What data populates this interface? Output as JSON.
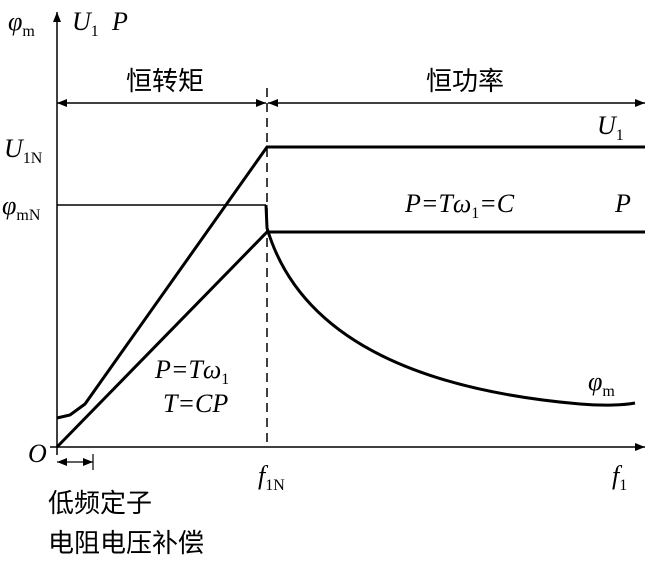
{
  "axes": {
    "y_labels": [
      {
        "main": "φ",
        "sub": "m"
      },
      {
        "main": "U",
        "sub": "1"
      },
      {
        "main": "P"
      }
    ],
    "origin": "O",
    "x_labels": [
      {
        "main": "f",
        "sub": "1N"
      },
      {
        "main": "f",
        "sub": "1"
      }
    ]
  },
  "regions": [
    "恒转矩",
    "恒功率"
  ],
  "levels": [
    {
      "main": "U",
      "sub": "1N"
    },
    {
      "main": "φ",
      "sub": "mN"
    }
  ],
  "curve_labels": {
    "u1": {
      "main": "U",
      "sub": "1"
    },
    "p": "P",
    "phi": {
      "main": "φ",
      "sub": "m"
    },
    "p_const": {
      "pre": "P=Tω",
      "sub": "1",
      "post": "=C"
    },
    "p_rise": {
      "pre": "P=Tω",
      "sub": "1"
    },
    "t_rise": "T=CP"
  },
  "note": [
    "低频定子",
    "电阻电压补偿"
  ]
}
